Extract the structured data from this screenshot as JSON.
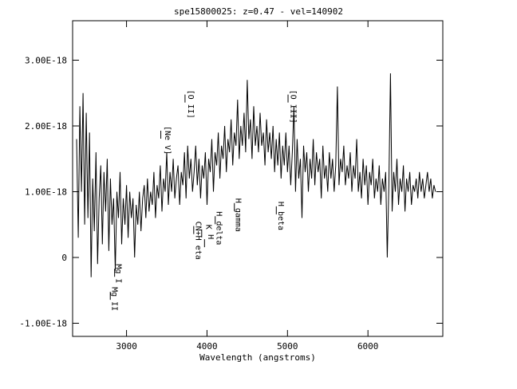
{
  "chart_data": {
    "type": "line",
    "title": "spe15800025: z=0.47 - vel=140902",
    "xlabel": "Wavelength (angstroms)",
    "ylabel": "",
    "xlim": [
      2330,
      6930
    ],
    "ylim": [
      -1.2e-18,
      3.6e-18
    ],
    "x_ticks": [
      {
        "v": 3000,
        "label": "3000"
      },
      {
        "v": 4000,
        "label": "4000"
      },
      {
        "v": 5000,
        "label": "5000"
      },
      {
        "v": 6000,
        "label": "6000"
      }
    ],
    "y_ticks": [
      {
        "v": 3e-18,
        "label": "3.00E-18"
      },
      {
        "v": 2e-18,
        "label": "2.00E-18"
      },
      {
        "v": 1e-18,
        "label": "1.00E-18"
      },
      {
        "v": 0,
        "label": "0"
      },
      {
        "v": -1e-18,
        "label": "-1.00E-18"
      }
    ],
    "grid": false,
    "series": [
      {
        "color": "#000000",
        "x": [
          2380,
          2400,
          2420,
          2440,
          2460,
          2480,
          2500,
          2520,
          2540,
          2560,
          2580,
          2600,
          2620,
          2640,
          2660,
          2680,
          2700,
          2720,
          2740,
          2760,
          2780,
          2800,
          2820,
          2840,
          2860,
          2880,
          2900,
          2920,
          2940,
          2960,
          2980,
          3000,
          3020,
          3040,
          3060,
          3080,
          3100,
          3120,
          3140,
          3160,
          3180,
          3200,
          3220,
          3240,
          3260,
          3280,
          3300,
          3320,
          3340,
          3360,
          3380,
          3400,
          3420,
          3440,
          3460,
          3480,
          3500,
          3520,
          3540,
          3560,
          3580,
          3600,
          3620,
          3640,
          3660,
          3680,
          3700,
          3720,
          3740,
          3760,
          3780,
          3800,
          3820,
          3840,
          3860,
          3880,
          3900,
          3920,
          3940,
          3960,
          3980,
          4000,
          4020,
          4040,
          4060,
          4080,
          4100,
          4120,
          4140,
          4160,
          4180,
          4200,
          4220,
          4240,
          4260,
          4280,
          4300,
          4320,
          4340,
          4360,
          4380,
          4400,
          4420,
          4440,
          4460,
          4480,
          4500,
          4520,
          4540,
          4560,
          4580,
          4600,
          4620,
          4640,
          4660,
          4680,
          4700,
          4720,
          4740,
          4760,
          4780,
          4800,
          4820,
          4840,
          4860,
          4880,
          4900,
          4920,
          4940,
          4960,
          4980,
          5000,
          5020,
          5040,
          5060,
          5080,
          5100,
          5120,
          5140,
          5160,
          5180,
          5200,
          5220,
          5240,
          5260,
          5280,
          5300,
          5320,
          5340,
          5360,
          5380,
          5400,
          5420,
          5440,
          5460,
          5480,
          5500,
          5520,
          5540,
          5560,
          5580,
          5600,
          5620,
          5640,
          5660,
          5680,
          5700,
          5720,
          5740,
          5760,
          5780,
          5800,
          5820,
          5840,
          5860,
          5880,
          5900,
          5920,
          5940,
          5960,
          5980,
          6000,
          6020,
          6040,
          6060,
          6080,
          6100,
          6120,
          6140,
          6160,
          6180,
          6200,
          6220,
          6240,
          6260,
          6280,
          6300,
          6320,
          6340,
          6360,
          6380,
          6400,
          6420,
          6440,
          6460,
          6480,
          6500,
          6520,
          6540,
          6560,
          6580,
          6600,
          6620,
          6640,
          6660,
          6680,
          6700,
          6720,
          6740,
          6760,
          6780,
          6800,
          6820,
          6840
        ],
        "y": [
          1.8e-18,
          3e-19,
          2.3e-18,
          1e-18,
          2.5e-18,
          5e-19,
          2.2e-18,
          6e-19,
          1.9e-18,
          -3e-19,
          1.2e-18,
          4e-19,
          1.6e-18,
          -1e-19,
          9e-19,
          1.4e-18,
          2e-19,
          1.3e-18,
          7e-19,
          1.5e-18,
          1e-19,
          1.2e-18,
          5e-19,
          9e-19,
          -2e-19,
          1e-18,
          6e-19,
          1.3e-18,
          2e-19,
          9e-19,
          5e-19,
          1.1e-18,
          3e-19,
          1e-18,
          6e-19,
          9e-19,
          0.0,
          8e-19,
          5e-19,
          1e-18,
          4e-19,
          9e-19,
          1.1e-18,
          6e-19,
          1.2e-18,
          7e-19,
          1e-18,
          8e-19,
          1.3e-18,
          6e-19,
          1.1e-18,
          9e-19,
          1.4e-18,
          7e-19,
          1.2e-18,
          1e-18,
          1.6e-18,
          8e-19,
          1.3e-18,
          1e-18,
          1.5e-18,
          9e-19,
          1.2e-18,
          1.4e-18,
          8e-19,
          1.3e-18,
          1.1e-18,
          1.6e-18,
          9e-19,
          1.7e-18,
          1.2e-18,
          1.5e-18,
          1e-18,
          1.3e-18,
          1.7e-18,
          1.1e-18,
          1.5e-18,
          9e-19,
          1.4e-18,
          1.2e-18,
          1.6e-18,
          8e-19,
          1.5e-18,
          1.3e-18,
          1.8e-18,
          1e-18,
          1.6e-18,
          1.4e-18,
          1.9e-18,
          1.2e-18,
          1.7e-18,
          1.5e-18,
          2e-18,
          1.3e-18,
          1.8e-18,
          1.6e-18,
          2.1e-18,
          1.4e-18,
          1.9e-18,
          1.7e-18,
          2.4e-18,
          1.5e-18,
          2e-18,
          1.7e-18,
          2.2e-18,
          1.6e-18,
          2.7e-18,
          1.8e-18,
          2.1e-18,
          1.5e-18,
          2.3e-18,
          1.7e-18,
          2e-18,
          1.6e-18,
          2.2e-18,
          1.7e-18,
          1.9e-18,
          1.4e-18,
          2.1e-18,
          1.6e-18,
          1.9e-18,
          1.5e-18,
          2e-18,
          1.3e-18,
          1.8e-18,
          1.4e-18,
          1.9e-18,
          1.2e-18,
          1.7e-18,
          1.4e-18,
          1.9e-18,
          1.3e-18,
          1.7e-18,
          1.1e-18,
          1.6e-18,
          2.3e-18,
          1e-18,
          1.8e-18,
          1.2e-18,
          1.5e-18,
          6e-19,
          1.7e-18,
          1.3e-18,
          1.6e-18,
          1e-18,
          1.5e-18,
          1.2e-18,
          1.8e-18,
          1.1e-18,
          1.6e-18,
          1.3e-18,
          1.5e-18,
          9e-19,
          1.7e-18,
          1.2e-18,
          1.4e-18,
          1e-18,
          1.6e-18,
          1.2e-18,
          1.5e-18,
          1e-18,
          1.4e-18,
          2.6e-18,
          1.1e-18,
          1.5e-18,
          1.3e-18,
          1.7e-18,
          1.1e-18,
          1.4e-18,
          1.2e-18,
          1.6e-18,
          1e-18,
          1.4e-18,
          1.2e-18,
          1.8e-18,
          1e-18,
          1.3e-18,
          9e-19,
          1.5e-18,
          1.1e-18,
          1.4e-18,
          8e-19,
          1.3e-18,
          1.1e-18,
          1.5e-18,
          9e-19,
          1.2e-18,
          1e-18,
          1.4e-18,
          8e-19,
          1.2e-18,
          1e-18,
          1.3e-18,
          0.0,
          1.1e-18,
          2.8e-18,
          7e-19,
          1.3e-18,
          1e-18,
          1.5e-18,
          8e-19,
          1.2e-18,
          1e-18,
          1.4e-18,
          7e-19,
          1.2e-18,
          1e-18,
          1.3e-18,
          8e-19,
          1.1e-18,
          1e-18,
          1.2e-18,
          9e-19,
          1.3e-18,
          1e-18,
          1.2e-18,
          9e-19,
          1.1e-18,
          1.3e-18,
          1e-18,
          1.2e-18,
          9e-19,
          1.1e-18,
          1e-18
        ]
      }
    ],
    "annotations": [
      {
        "text": "Mg I",
        "x": 2852,
        "lx": 2830,
        "ly": -1e-19
      },
      {
        "text": "Mg II",
        "x": 2798,
        "lx": 2780,
        "ly": -4.5e-19
      },
      {
        "text": "[Ne V]",
        "x": 3426,
        "lx": 3440,
        "ly": 2e-18
      },
      {
        "text": "[O II]",
        "x": 3727,
        "lx": 3727,
        "ly": 2.55e-18
      },
      {
        "text": "CN+H eta",
        "x": 3835,
        "lx": 3820,
        "ly": 5.5e-19
      },
      {
        "text": "K",
        "x": 3934,
        "lx": 3950,
        "ly": 5e-19
      },
      {
        "text": "H",
        "x": 3969,
        "lx": 3975,
        "ly": 3.5e-19
      },
      {
        "text": "H delta",
        "x": 4102,
        "lx": 4080,
        "ly": 7e-19
      },
      {
        "text": "H gamma",
        "x": 4340,
        "lx": 4320,
        "ly": 9e-19
      },
      {
        "text": "H beta",
        "x": 4861,
        "lx": 4850,
        "ly": 8.5e-19
      },
      {
        "text": "[O III]",
        "x": 5007,
        "lx": 5000,
        "ly": 2.55e-18
      }
    ]
  }
}
